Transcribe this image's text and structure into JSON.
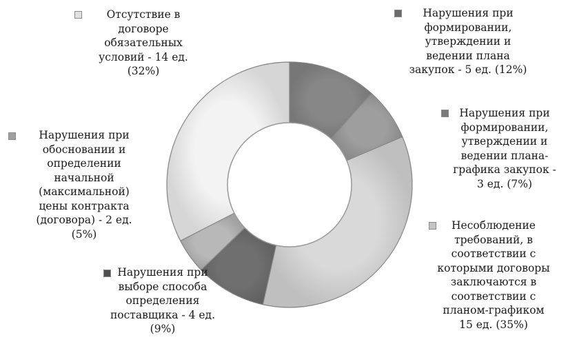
{
  "chart_data": {
    "type": "donut",
    "segments": [
      {
        "label": "Нарушения при\nформировании,\nутверждении и\nведении плана\nзакупок - 5 ед. (12%)",
        "count": 5,
        "percent": 12,
        "color": "#878787",
        "marker_color": "#6a6a6a"
      },
      {
        "label": "Нарушения при\nформировании,\nутверждении и\nведении плана-\nграфика закупок -\n3 ед. (7%)",
        "count": 3,
        "percent": 7,
        "color": "#9e9e9e",
        "marker_color": "#7a7a7a"
      },
      {
        "label": "Несоблюдение\nтребований, в\nсоответствии с\nкоторыми договоры\nзаключаются в\nсоответствии с\nпланом-графиком\n15 ед. (35%)",
        "count": 15,
        "percent": 35,
        "color": "#d9d9d9",
        "marker_color": "#c4c4c4"
      },
      {
        "label": "Нарушения при\nвыборе способа\nопределения\nпоставщика - 4 ед.\n(9%)",
        "count": 4,
        "percent": 9,
        "color": "#6f6f6f",
        "marker_color": "#4f4f4f"
      },
      {
        "label": "Нарушения при\nобосновании и\nопределении\nначальной\n(максимальной)\nцены контракта\n(договора) - 2 ед.\n(5%)",
        "count": 2,
        "percent": 5,
        "color": "#b8b8b8",
        "marker_color": "#a0a0a0"
      },
      {
        "label": "Отсутствие в\nдоговоре\nобязательных\nусловий - 14 ед.\n(32%)",
        "count": 14,
        "percent": 32,
        "color": "#f3f3f3",
        "marker_color": "#e0e0e0"
      }
    ],
    "start": "top",
    "direction": "clockwise",
    "legend": "callout labels around ring"
  }
}
